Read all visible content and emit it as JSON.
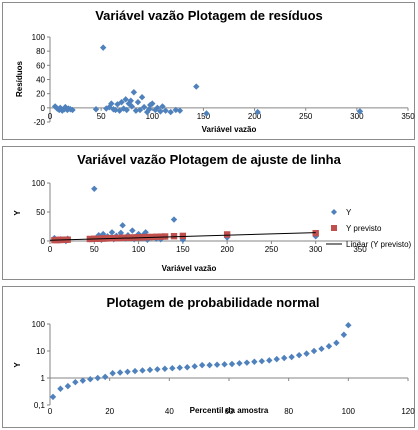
{
  "colors": {
    "series_y": "#4f81bd",
    "series_pred": "#c0504d",
    "trend": "#000000",
    "axis": "#868686",
    "frame": "#8c8c8c"
  },
  "chart_data": [
    {
      "type": "scatter",
      "title": "Variável vazão Plotagem de resíduos",
      "xlabel": "Variável vazão",
      "ylabel": "Resíduos",
      "xlim": [
        0,
        350
      ],
      "ylim": [
        -20,
        100
      ],
      "xticks": [
        "0",
        "50",
        "100",
        "150",
        "200",
        "250",
        "300",
        "350"
      ],
      "yticks": [
        "-20",
        "0",
        "20",
        "40",
        "60",
        "80",
        "100"
      ],
      "grid": false,
      "series": [
        {
          "marker": "diamond",
          "x": [
            5,
            7,
            9,
            10,
            12,
            14,
            15,
            17,
            18,
            20,
            22,
            45,
            52,
            55,
            58,
            60,
            62,
            64,
            66,
            68,
            70,
            72,
            74,
            75,
            77,
            79,
            80,
            82,
            84,
            86,
            88,
            90,
            92,
            95,
            97,
            98,
            100,
            103,
            105,
            108,
            110,
            113,
            118,
            123,
            127,
            143,
            153,
            203,
            303
          ],
          "y": [
            2,
            -1,
            -3,
            0,
            -4,
            -2,
            1,
            -3,
            -1,
            -2,
            -3,
            -2,
            85,
            -1,
            1,
            6,
            -2,
            -3,
            5,
            -4,
            8,
            -1,
            12,
            -3,
            6,
            10,
            2,
            22,
            -4,
            8,
            -3,
            15,
            1,
            -6,
            -2,
            4,
            6,
            -3,
            0,
            -5,
            2,
            -4,
            -6,
            -3,
            -4,
            30,
            -8,
            -6,
            -5
          ]
        }
      ]
    },
    {
      "type": "scatter",
      "title": "Variável vazão Plotagem de ajuste de linha",
      "xlabel": "Variável vazão",
      "ylabel": "Y",
      "xlim": [
        0,
        350
      ],
      "ylim": [
        0,
        100
      ],
      "xticks": [
        "0",
        "50",
        "100",
        "150",
        "200",
        "250",
        "300",
        "350"
      ],
      "yticks": [
        "0",
        "50",
        "100"
      ],
      "grid": false,
      "legend": [
        "Y",
        "Y previsto",
        "Linear (Y previsto)"
      ],
      "legend_position": "right",
      "series": [
        {
          "name": "Y",
          "marker": "diamond",
          "x": [
            5,
            8,
            10,
            12,
            15,
            18,
            20,
            45,
            50,
            52,
            55,
            58,
            60,
            62,
            65,
            68,
            70,
            72,
            75,
            78,
            80,
            82,
            85,
            88,
            90,
            93,
            95,
            98,
            100,
            103,
            105,
            108,
            110,
            115,
            120,
            125,
            130,
            140,
            150,
            200,
            300
          ],
          "y": [
            5,
            2,
            1,
            3,
            2,
            0,
            4,
            3,
            90,
            5,
            10,
            2,
            12,
            4,
            8,
            6,
            15,
            3,
            9,
            5,
            14,
            27,
            4,
            10,
            6,
            18,
            3,
            8,
            12,
            5,
            10,
            15,
            2,
            6,
            4,
            3,
            7,
            37,
            2,
            6,
            8
          ]
        },
        {
          "name": "Y previsto",
          "marker": "square",
          "x": [
            5,
            8,
            10,
            12,
            15,
            18,
            20,
            45,
            50,
            52,
            55,
            58,
            60,
            62,
            65,
            68,
            70,
            72,
            75,
            78,
            80,
            82,
            85,
            88,
            90,
            93,
            95,
            98,
            100,
            103,
            105,
            108,
            110,
            115,
            120,
            125,
            130,
            140,
            150,
            200,
            300
          ],
          "y": [
            1.5,
            1.7,
            1.8,
            1.9,
            2.0,
            2.2,
            2.3,
            3.5,
            3.8,
            3.9,
            4.0,
            4.2,
            4.3,
            4.4,
            4.5,
            4.7,
            4.8,
            4.9,
            5.0,
            5.2,
            5.3,
            5.4,
            5.5,
            5.7,
            5.8,
            5.9,
            6.0,
            6.2,
            6.3,
            6.4,
            6.5,
            6.7,
            6.8,
            7.0,
            7.3,
            7.5,
            7.8,
            8.3,
            8.8,
            11.3,
            13.5
          ]
        }
      ],
      "trendline": {
        "name": "Linear (Y previsto)",
        "x": [
          0,
          300
        ],
        "y": [
          1.2,
          14.5
        ]
      }
    },
    {
      "type": "scatter",
      "title": "Plotagem de probabilidade normal",
      "xlabel": "Percentil da amostra",
      "ylabel": "Y",
      "xlim": [
        0,
        120
      ],
      "ylim": [
        0.1,
        100
      ],
      "yscale": "log",
      "xticks": [
        "0",
        "20",
        "40",
        "60",
        "80",
        "100",
        "120"
      ],
      "yticks": [
        "0,1",
        "1",
        "10",
        "100"
      ],
      "grid": false,
      "series": [
        {
          "marker": "diamond",
          "x": [
            1,
            3.5,
            6,
            8.5,
            11,
            13.5,
            16,
            18.5,
            21,
            23.5,
            26,
            28.5,
            31,
            33.5,
            36,
            38.5,
            41,
            43.5,
            46,
            48.5,
            51,
            53.5,
            56,
            58.5,
            61,
            63.5,
            66,
            68.5,
            71,
            73.5,
            76,
            78.5,
            81,
            83.5,
            86,
            88.5,
            91,
            93.5,
            96,
            98.5,
            100
          ],
          "y": [
            0.2,
            0.4,
            0.5,
            0.7,
            0.8,
            0.9,
            1.0,
            1.1,
            1.5,
            1.6,
            1.7,
            1.8,
            1.9,
            2.0,
            2.1,
            2.2,
            2.3,
            2.4,
            2.5,
            2.7,
            3.0,
            3.0,
            3.1,
            3.2,
            3.3,
            3.5,
            3.7,
            4.0,
            4.2,
            4.5,
            5.0,
            5.5,
            6.0,
            7.0,
            8.0,
            10,
            12,
            15,
            20,
            40,
            90
          ]
        }
      ]
    }
  ]
}
